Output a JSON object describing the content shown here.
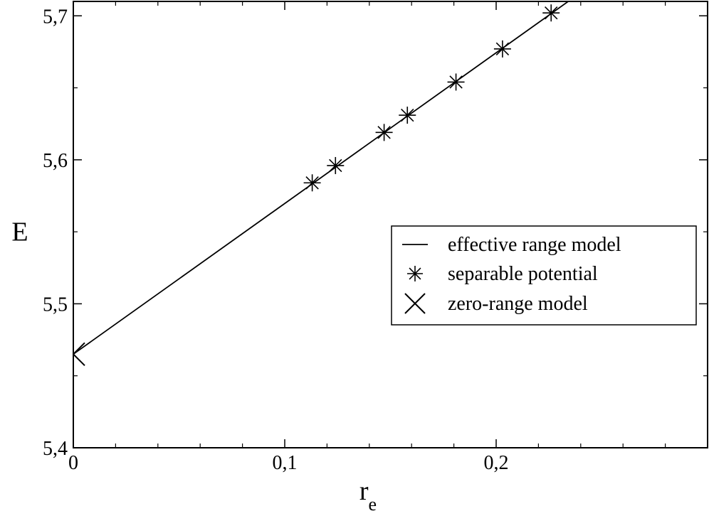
{
  "chart_data": {
    "type": "line",
    "title": "",
    "xlabel": {
      "main": "r",
      "sub": "e"
    },
    "ylabel": "E",
    "xlim": [
      0,
      0.3
    ],
    "ylim": [
      5.4,
      5.71
    ],
    "x_major_ticks": [
      0,
      0.1,
      0.2
    ],
    "x_tick_labels": [
      "0",
      "0,1",
      "0,2"
    ],
    "x_minor_ticks": [
      0.02,
      0.04,
      0.06,
      0.08,
      0.12,
      0.14,
      0.16,
      0.18,
      0.22,
      0.24,
      0.26,
      0.28
    ],
    "y_major_ticks": [
      5.4,
      5.5,
      5.6,
      5.7
    ],
    "y_tick_labels": [
      "5,4",
      "5,5",
      "5,6",
      "5,7"
    ],
    "y_minor_ticks": [
      5.45,
      5.55,
      5.65
    ],
    "grid": false,
    "legend_position": "right",
    "series": [
      {
        "name": "effective range model",
        "kind": "line",
        "color": "#000000",
        "x": [
          0,
          0.236
        ],
        "y": [
          5.465,
          5.712
        ]
      },
      {
        "name": "separable potential",
        "kind": "scatter",
        "marker": "asterisk",
        "color": "#000000",
        "x": [
          0.113,
          0.124,
          0.147,
          0.158,
          0.181,
          0.203,
          0.226
        ],
        "y": [
          5.584,
          5.596,
          5.619,
          5.631,
          5.654,
          5.677,
          5.702
        ]
      },
      {
        "name": "zero-range model",
        "kind": "scatter",
        "marker": "x",
        "color": "#000000",
        "x": [
          0
        ],
        "y": [
          5.465
        ]
      }
    ]
  }
}
